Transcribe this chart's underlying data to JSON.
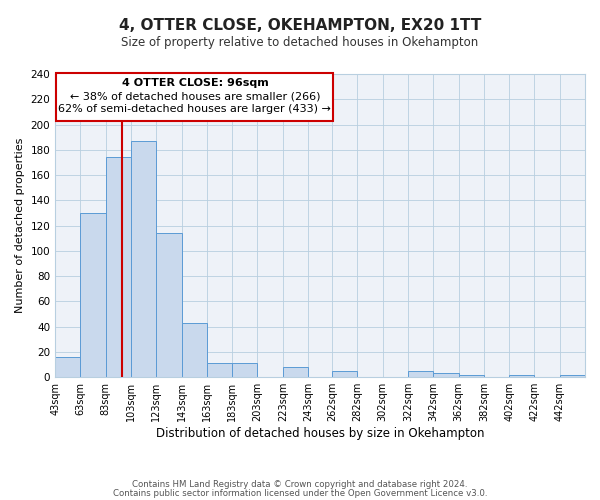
{
  "title": "4, OTTER CLOSE, OKEHAMPTON, EX20 1TT",
  "subtitle": "Size of property relative to detached houses in Okehampton",
  "xlabel": "Distribution of detached houses by size in Okehampton",
  "ylabel": "Number of detached properties",
  "bar_color": "#c9d9ed",
  "bar_edge_color": "#5b9bd5",
  "bin_labels": [
    "43sqm",
    "63sqm",
    "83sqm",
    "103sqm",
    "123sqm",
    "143sqm",
    "163sqm",
    "183sqm",
    "203sqm",
    "223sqm",
    "243sqm",
    "262sqm",
    "282sqm",
    "302sqm",
    "322sqm",
    "342sqm",
    "362sqm",
    "382sqm",
    "402sqm",
    "422sqm",
    "442sqm"
  ],
  "bin_left_edges": [
    43,
    63,
    83,
    103,
    123,
    143,
    163,
    183,
    203,
    223,
    243,
    262,
    282,
    302,
    322,
    342,
    362,
    382,
    402,
    422,
    442
  ],
  "bin_width": 20,
  "counts": [
    16,
    130,
    174,
    187,
    114,
    43,
    11,
    11,
    0,
    8,
    0,
    5,
    0,
    0,
    5,
    3,
    2,
    0,
    2,
    0,
    2
  ],
  "property_line_x": 96,
  "annotation_title": "4 OTTER CLOSE: 96sqm",
  "annotation_line1": "← 38% of detached houses are smaller (266)",
  "annotation_line2": "62% of semi-detached houses are larger (433) →",
  "annotation_box_color": "#ffffff",
  "annotation_box_edge_color": "#cc0000",
  "vline_color": "#cc0000",
  "ylim": [
    0,
    240
  ],
  "yticks": [
    0,
    20,
    40,
    60,
    80,
    100,
    120,
    140,
    160,
    180,
    200,
    220,
    240
  ],
  "xlim_left": 43,
  "xlim_right": 462,
  "grid_color": "#b8cfe0",
  "background_color": "#eef2f8",
  "footer_line1": "Contains HM Land Registry data © Crown copyright and database right 2024.",
  "footer_line2": "Contains public sector information licensed under the Open Government Licence v3.0."
}
